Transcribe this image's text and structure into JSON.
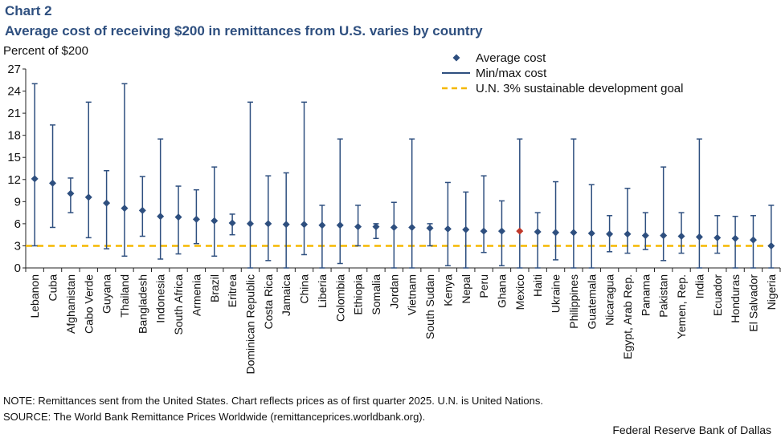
{
  "header": {
    "chart_label": "Chart 2",
    "title": "Average cost of receiving $200 in remittances from U.S. varies by country"
  },
  "footer": {
    "note": "NOTE:  Remittances sent from the United States. Chart reflects prices as of first quarter 2025. U.N.  is United Nations.",
    "source": "SOURCE:  The World Bank Remittance Prices Worldwide (remittanceprices.worldbank.org).",
    "credit": "Federal Reserve Bank of Dallas"
  },
  "colors": {
    "series": "#2e4f7f",
    "highlight": "#c0392b",
    "goal": "#f5b800"
  },
  "chart_data": {
    "type": "scatter",
    "title": "Average cost of receiving $200 in remittances from U.S. varies by country",
    "ylabel": "Percent of $200",
    "ylim": [
      0,
      27
    ],
    "yticks": [
      0,
      3,
      6,
      9,
      12,
      15,
      18,
      21,
      24,
      27
    ],
    "goal_value": 3,
    "highlight": "Mexico",
    "legend": {
      "placement": "top-right",
      "entries": [
        "Average cost",
        "Min/max cost",
        "U.N. 3% sustainable development goal"
      ]
    },
    "categories": [
      "Lebanon",
      "Cuba",
      "Afghanistan",
      "Cabo Verde",
      "Guyana",
      "Thailand",
      "Bangladesh",
      "Indonesia",
      "South Africa",
      "Armenia",
      "Brazil",
      "Eritrea",
      "Dominican Republic",
      "Costa Rica",
      "Jamaica",
      "China",
      "Liberia",
      "Colombia",
      "Ethiopia",
      "Somalia",
      "Jordan",
      "Vietnam",
      "South Sudan",
      "Kenya",
      "Nepal",
      "Peru",
      "Ghana",
      "Mexico",
      "Haiti",
      "Ukraine",
      "Philippines",
      "Guatemala",
      "Nicaragua",
      "Egypt, Arab Rep.",
      "Panama",
      "Pakistan",
      "Yemen, Rep.",
      "India",
      "Ecuador",
      "Honduras",
      "El Salvador",
      "Nigeria"
    ],
    "series": [
      {
        "name": "Average cost",
        "values": [
          12.1,
          11.5,
          10.1,
          9.6,
          8.8,
          8.1,
          7.8,
          7.0,
          6.9,
          6.6,
          6.4,
          6.1,
          6.0,
          6.0,
          5.9,
          5.9,
          5.8,
          5.8,
          5.6,
          5.6,
          5.5,
          5.5,
          5.4,
          5.3,
          5.2,
          5.0,
          5.0,
          5.0,
          4.9,
          4.8,
          4.8,
          4.7,
          4.6,
          4.6,
          4.4,
          4.4,
          4.3,
          4.2,
          4.1,
          4.0,
          3.8,
          3.0
        ]
      },
      {
        "name": "Min cost",
        "values": [
          3.0,
          5.5,
          7.5,
          4.1,
          2.6,
          1.6,
          4.3,
          1.2,
          1.9,
          3.3,
          1.6,
          4.5,
          0,
          1.0,
          0,
          1.8,
          0,
          0.6,
          3.0,
          4.0,
          0,
          0,
          3.0,
          0.3,
          0,
          2.1,
          0.3,
          0,
          0,
          1.1,
          0,
          0,
          2.2,
          2.0,
          2.5,
          1.0,
          2.0,
          0,
          2.0,
          0,
          0,
          0
        ]
      },
      {
        "name": "Max cost",
        "values": [
          25,
          19.4,
          12.2,
          22.5,
          13.2,
          25,
          12.4,
          17.5,
          11.1,
          10.6,
          13.7,
          7.3,
          22.5,
          12.5,
          12.9,
          22.5,
          8.5,
          17.5,
          8.5,
          6.0,
          8.9,
          17.5,
          6.0,
          11.6,
          10.3,
          12.5,
          9.1,
          17.5,
          7.5,
          11.7,
          17.5,
          11.3,
          7.1,
          10.8,
          7.5,
          13.7,
          7.5,
          17.5,
          7.1,
          7.0,
          7.1,
          8.5
        ]
      }
    ]
  }
}
